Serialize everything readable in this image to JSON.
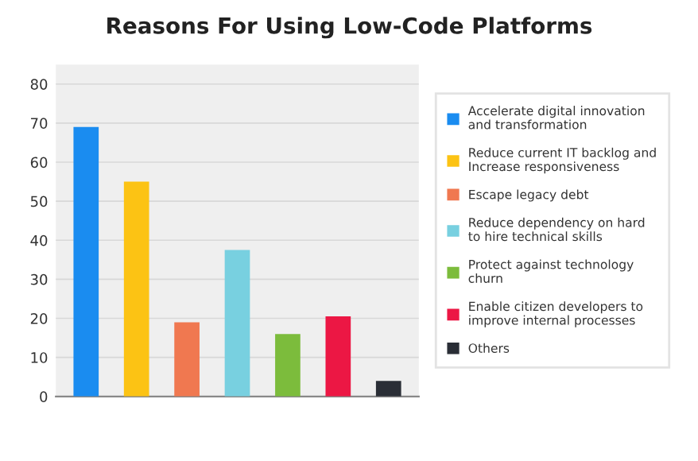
{
  "chart_data": {
    "type": "bar",
    "title": "Reasons For Using Low-Code Platforms",
    "categories": [
      null,
      null,
      null,
      null,
      null,
      null,
      null
    ],
    "series": [
      {
        "name": "Accelerate digital innovation\nand transformation",
        "color": "#1a8cf0",
        "values": [
          69,
          null,
          null,
          null,
          null,
          null,
          null
        ]
      },
      {
        "name": "Reduce current IT backlog and\nIncrease responsiveness",
        "color": "#fcc314",
        "values": [
          null,
          55,
          null,
          null,
          null,
          null,
          null
        ]
      },
      {
        "name": "Escape legacy debt",
        "color": "#f07850",
        "values": [
          null,
          null,
          19,
          null,
          null,
          null,
          null
        ]
      },
      {
        "name": "Reduce dependency on hard\nto hire technical skills",
        "color": "#78d0e0",
        "values": [
          null,
          null,
          null,
          37.5,
          null,
          null,
          null
        ]
      },
      {
        "name": "Protect against technology\nchurn",
        "color": "#7cbc3c",
        "values": [
          null,
          null,
          null,
          null,
          16,
          null,
          null
        ]
      },
      {
        "name": "Enable citizen developers to\nimprove internal processes",
        "color": "#ec1744",
        "values": [
          null,
          null,
          null,
          null,
          null,
          20.5,
          null
        ]
      },
      {
        "name": "Others",
        "color": "#2a2e36",
        "values": [
          null,
          null,
          null,
          null,
          null,
          null,
          4
        ]
      }
    ],
    "ylim": [
      0,
      85
    ],
    "yticks": [
      0,
      10,
      20,
      30,
      40,
      50,
      60,
      70,
      80
    ],
    "grid": "y",
    "legend": "right"
  }
}
